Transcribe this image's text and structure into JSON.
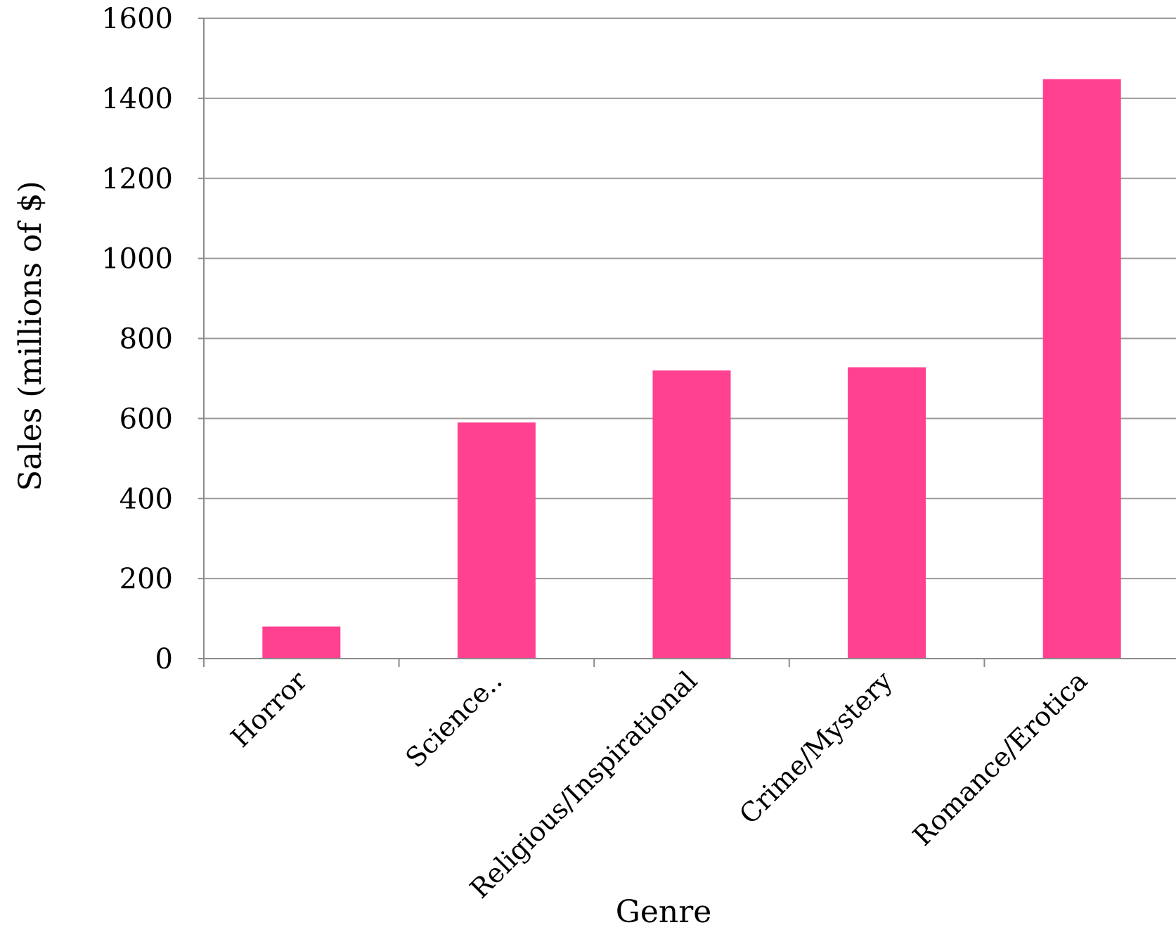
{
  "chart_data": {
    "type": "bar",
    "title": "",
    "xlabel": "Genre",
    "ylabel": "Sales (millions of $)",
    "categories": [
      "Horror",
      "Science..",
      "Religious/Inspirational",
      "Crime/Mystery",
      "Romance/Erotica"
    ],
    "values": [
      80,
      590,
      720,
      728,
      1448
    ],
    "ylim": [
      0,
      1600
    ],
    "yticks": [
      "0",
      "200",
      "400",
      "600",
      "800",
      "1000",
      "1200",
      "1400",
      "1600"
    ],
    "bar_color": "#ff4190",
    "grid": true,
    "legend": "none"
  }
}
